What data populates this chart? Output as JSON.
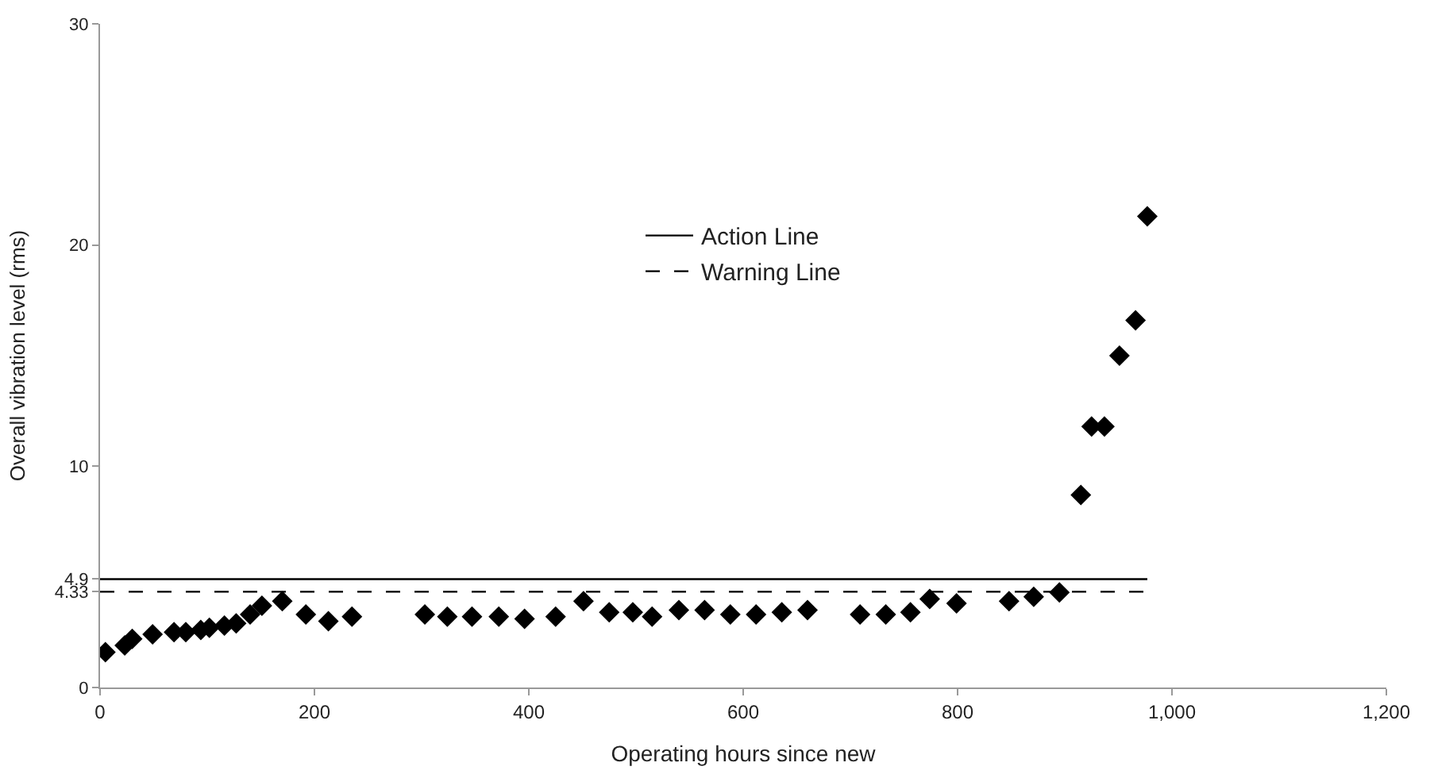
{
  "chart_data": {
    "type": "scatter",
    "xlabel": "Operating hours since new",
    "ylabel": "Overall vibration level (rms)",
    "xlim": [
      0,
      1200
    ],
    "xticks": [
      0,
      200,
      400,
      600,
      800,
      {
        "value": 1000,
        "label": "1,000"
      },
      {
        "value": 1200,
        "label": "1,200"
      }
    ],
    "ylim": [
      0,
      30
    ],
    "yticks": [
      0,
      {
        "value": 4.33,
        "label": "4.33"
      },
      {
        "value": 4.9,
        "label": "4.9"
      },
      10,
      20,
      30
    ],
    "legend": "top",
    "series": [
      {
        "marker": "diamond",
        "color": "#000000",
        "x": [
          5,
          23,
          30,
          49,
          69,
          80,
          94,
          102,
          116,
          127,
          140,
          151,
          170,
          192,
          213,
          235,
          303,
          324,
          347,
          372,
          396,
          425,
          451,
          475,
          497,
          515,
          540,
          564,
          588,
          612,
          636,
          660,
          709,
          733,
          756,
          774,
          799,
          848,
          871,
          895,
          915,
          925,
          937,
          951,
          966,
          977
        ],
        "values": [
          1.6,
          1.9,
          2.2,
          2.4,
          2.5,
          2.5,
          2.6,
          2.7,
          2.8,
          2.9,
          3.3,
          3.7,
          3.9,
          3.3,
          3.0,
          3.2,
          3.3,
          3.2,
          3.2,
          3.2,
          3.1,
          3.2,
          3.9,
          3.4,
          3.4,
          3.2,
          3.5,
          3.5,
          3.3,
          3.3,
          3.4,
          3.5,
          3.3,
          3.3,
          3.4,
          4.0,
          3.8,
          3.9,
          4.1,
          4.3,
          8.7,
          11.8,
          11.8,
          15.0,
          16.6,
          21.3
        ]
      },
      {
        "type": "line",
        "name": "Action Line",
        "color": "#000000",
        "marker": "none",
        "line_style": "solid",
        "x": [
          0,
          977
        ],
        "values": [
          4.9,
          4.9
        ]
      },
      {
        "type": "line",
        "name": "Warning Line",
        "color": "#000000",
        "marker": "none",
        "line_style": "dashed",
        "x": [
          0,
          977
        ],
        "values": [
          4.33,
          4.33
        ]
      }
    ]
  }
}
